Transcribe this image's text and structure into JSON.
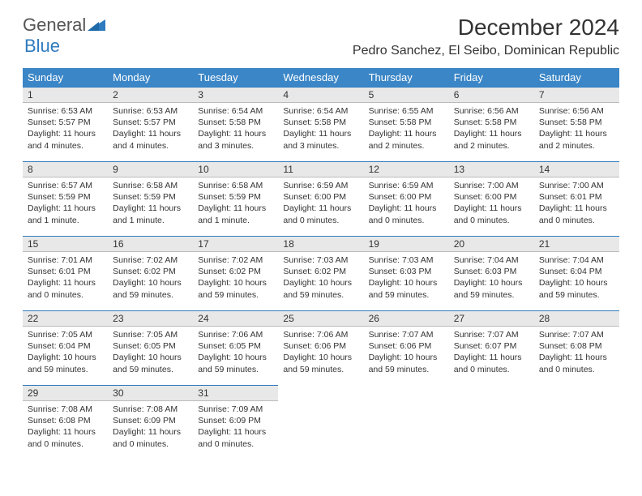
{
  "logo": {
    "text_a": "General",
    "text_b": "Blue"
  },
  "title": "December 2024",
  "location": "Pedro Sanchez, El Seibo, Dominican Republic",
  "colors": {
    "header_bg": "#3b86c7",
    "daynum_bg": "#e8e8e8",
    "border_top": "#2f7bbf",
    "text": "#333333"
  },
  "weekdays": [
    "Sunday",
    "Monday",
    "Tuesday",
    "Wednesday",
    "Thursday",
    "Friday",
    "Saturday"
  ],
  "days": [
    {
      "n": "1",
      "sr": "6:53 AM",
      "ss": "5:57 PM",
      "dl": "11 hours and 4 minutes."
    },
    {
      "n": "2",
      "sr": "6:53 AM",
      "ss": "5:57 PM",
      "dl": "11 hours and 4 minutes."
    },
    {
      "n": "3",
      "sr": "6:54 AM",
      "ss": "5:58 PM",
      "dl": "11 hours and 3 minutes."
    },
    {
      "n": "4",
      "sr": "6:54 AM",
      "ss": "5:58 PM",
      "dl": "11 hours and 3 minutes."
    },
    {
      "n": "5",
      "sr": "6:55 AM",
      "ss": "5:58 PM",
      "dl": "11 hours and 2 minutes."
    },
    {
      "n": "6",
      "sr": "6:56 AM",
      "ss": "5:58 PM",
      "dl": "11 hours and 2 minutes."
    },
    {
      "n": "7",
      "sr": "6:56 AM",
      "ss": "5:58 PM",
      "dl": "11 hours and 2 minutes."
    },
    {
      "n": "8",
      "sr": "6:57 AM",
      "ss": "5:59 PM",
      "dl": "11 hours and 1 minute."
    },
    {
      "n": "9",
      "sr": "6:58 AM",
      "ss": "5:59 PM",
      "dl": "11 hours and 1 minute."
    },
    {
      "n": "10",
      "sr": "6:58 AM",
      "ss": "5:59 PM",
      "dl": "11 hours and 1 minute."
    },
    {
      "n": "11",
      "sr": "6:59 AM",
      "ss": "6:00 PM",
      "dl": "11 hours and 0 minutes."
    },
    {
      "n": "12",
      "sr": "6:59 AM",
      "ss": "6:00 PM",
      "dl": "11 hours and 0 minutes."
    },
    {
      "n": "13",
      "sr": "7:00 AM",
      "ss": "6:00 PM",
      "dl": "11 hours and 0 minutes."
    },
    {
      "n": "14",
      "sr": "7:00 AM",
      "ss": "6:01 PM",
      "dl": "11 hours and 0 minutes."
    },
    {
      "n": "15",
      "sr": "7:01 AM",
      "ss": "6:01 PM",
      "dl": "11 hours and 0 minutes."
    },
    {
      "n": "16",
      "sr": "7:02 AM",
      "ss": "6:02 PM",
      "dl": "10 hours and 59 minutes."
    },
    {
      "n": "17",
      "sr": "7:02 AM",
      "ss": "6:02 PM",
      "dl": "10 hours and 59 minutes."
    },
    {
      "n": "18",
      "sr": "7:03 AM",
      "ss": "6:02 PM",
      "dl": "10 hours and 59 minutes."
    },
    {
      "n": "19",
      "sr": "7:03 AM",
      "ss": "6:03 PM",
      "dl": "10 hours and 59 minutes."
    },
    {
      "n": "20",
      "sr": "7:04 AM",
      "ss": "6:03 PM",
      "dl": "10 hours and 59 minutes."
    },
    {
      "n": "21",
      "sr": "7:04 AM",
      "ss": "6:04 PM",
      "dl": "10 hours and 59 minutes."
    },
    {
      "n": "22",
      "sr": "7:05 AM",
      "ss": "6:04 PM",
      "dl": "10 hours and 59 minutes."
    },
    {
      "n": "23",
      "sr": "7:05 AM",
      "ss": "6:05 PM",
      "dl": "10 hours and 59 minutes."
    },
    {
      "n": "24",
      "sr": "7:06 AM",
      "ss": "6:05 PM",
      "dl": "10 hours and 59 minutes."
    },
    {
      "n": "25",
      "sr": "7:06 AM",
      "ss": "6:06 PM",
      "dl": "10 hours and 59 minutes."
    },
    {
      "n": "26",
      "sr": "7:07 AM",
      "ss": "6:06 PM",
      "dl": "10 hours and 59 minutes."
    },
    {
      "n": "27",
      "sr": "7:07 AM",
      "ss": "6:07 PM",
      "dl": "11 hours and 0 minutes."
    },
    {
      "n": "28",
      "sr": "7:07 AM",
      "ss": "6:08 PM",
      "dl": "11 hours and 0 minutes."
    },
    {
      "n": "29",
      "sr": "7:08 AM",
      "ss": "6:08 PM",
      "dl": "11 hours and 0 minutes."
    },
    {
      "n": "30",
      "sr": "7:08 AM",
      "ss": "6:09 PM",
      "dl": "11 hours and 0 minutes."
    },
    {
      "n": "31",
      "sr": "7:09 AM",
      "ss": "6:09 PM",
      "dl": "11 hours and 0 minutes."
    }
  ],
  "labels": {
    "sunrise": "Sunrise: ",
    "sunset": "Sunset: ",
    "daylight": "Daylight: "
  }
}
